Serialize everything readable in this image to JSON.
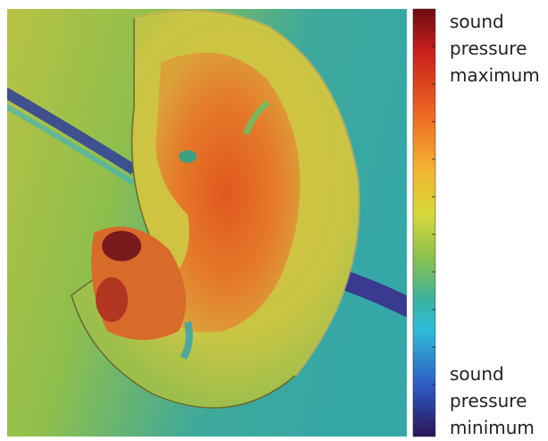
{
  "colorbar": {
    "top_label": [
      "sound",
      "pressure",
      "maximum"
    ],
    "bottom_label": [
      "sound",
      "pressure",
      "minimum"
    ]
  }
}
